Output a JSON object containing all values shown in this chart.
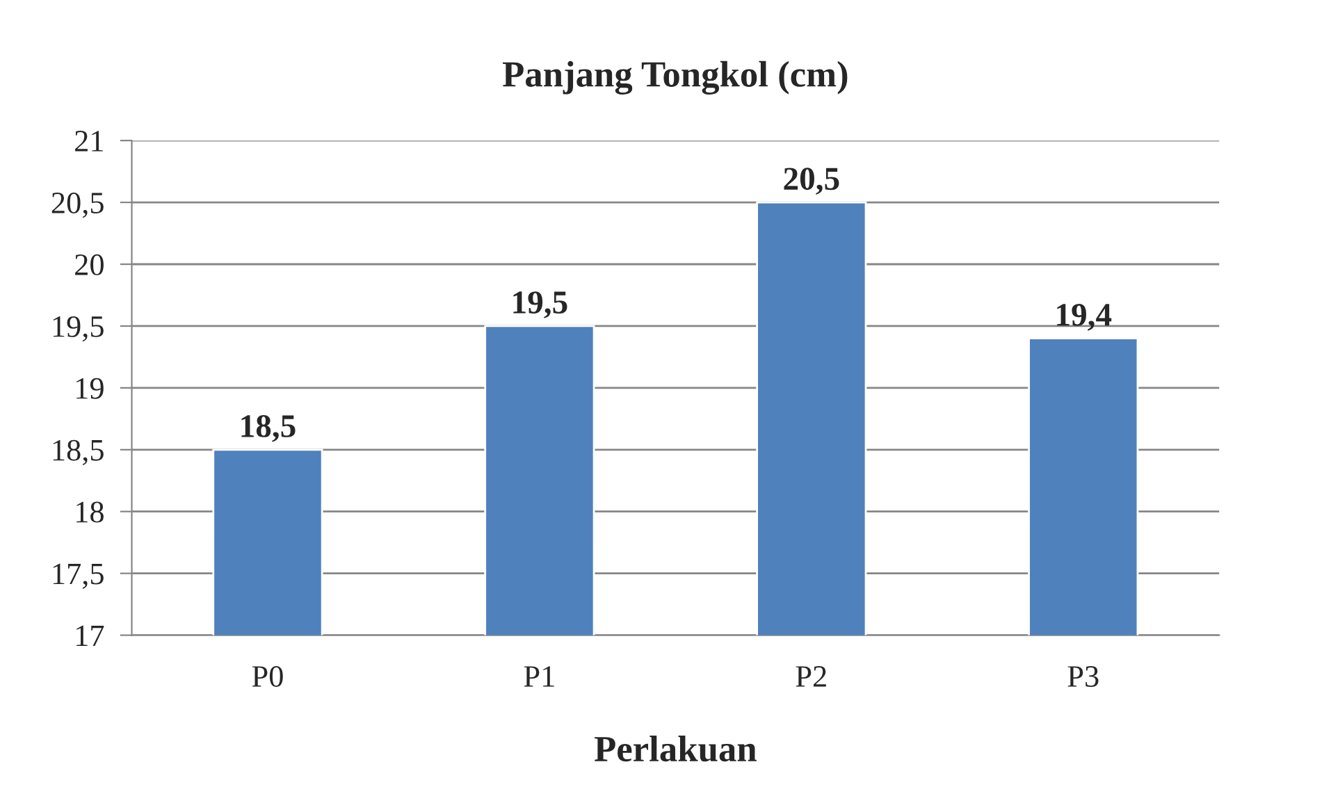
{
  "chart_data": {
    "type": "bar",
    "title": "Panjang Tongkol (cm)",
    "xlabel": "Perlakuan",
    "categories": [
      "P0",
      "P1",
      "P2",
      "P3"
    ],
    "values": [
      18.5,
      19.5,
      20.5,
      19.4
    ],
    "value_labels": [
      "18,5",
      "19,5",
      "20,5",
      "19,4"
    ],
    "color": "#4f81bd",
    "ylim": [
      17,
      21
    ],
    "yticks": [
      17,
      {
        "value": 17.5,
        "label": "17,5"
      },
      18,
      {
        "value": 18.5,
        "label": "18,5"
      },
      19,
      {
        "value": 19.5,
        "label": "19,5"
      },
      20,
      {
        "value": 20.5,
        "label": "20,5"
      },
      21
    ],
    "grid": "y",
    "legend": false
  }
}
